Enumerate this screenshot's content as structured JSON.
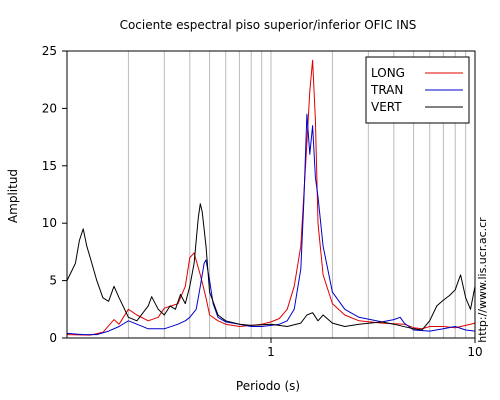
{
  "chart_data": {
    "type": "line",
    "title": "Cociente espectral piso superior/inferior  OFIC INS",
    "xlabel": "Periodo (s)",
    "ylabel": "Amplitud",
    "x_scale": "log",
    "xlim": [
      0.1,
      10
    ],
    "ylim": [
      0,
      25
    ],
    "xticks": [
      {
        "value": 1,
        "label": "1"
      },
      {
        "value": 10,
        "label": "10"
      }
    ],
    "yticks": [
      {
        "value": 0,
        "label": "0"
      },
      {
        "value": 5,
        "label": "5"
      },
      {
        "value": 10,
        "label": "10"
      },
      {
        "value": 15,
        "label": "15"
      },
      {
        "value": 20,
        "label": "20"
      },
      {
        "value": 25,
        "label": "25"
      }
    ],
    "grid": "vertical, log-spaced",
    "legend_position": "top-right",
    "watermark": "http://www.lis.ucr.ac.cr",
    "series": [
      {
        "name": "LONG",
        "color": "#e00000",
        "points": [
          [
            0.1,
            0.3
          ],
          [
            0.13,
            0.25
          ],
          [
            0.15,
            0.5
          ],
          [
            0.17,
            1.6
          ],
          [
            0.18,
            1.2
          ],
          [
            0.2,
            2.5
          ],
          [
            0.22,
            2.0
          ],
          [
            0.25,
            1.5
          ],
          [
            0.28,
            1.8
          ],
          [
            0.3,
            2.6
          ],
          [
            0.35,
            3.0
          ],
          [
            0.38,
            4.5
          ],
          [
            0.4,
            7.0
          ],
          [
            0.42,
            7.4
          ],
          [
            0.45,
            5.5
          ],
          [
            0.48,
            3.5
          ],
          [
            0.5,
            2.0
          ],
          [
            0.55,
            1.5
          ],
          [
            0.6,
            1.2
          ],
          [
            0.7,
            1.0
          ],
          [
            0.8,
            1.1
          ],
          [
            0.9,
            1.2
          ],
          [
            1.0,
            1.4
          ],
          [
            1.1,
            1.7
          ],
          [
            1.2,
            2.5
          ],
          [
            1.3,
            4.5
          ],
          [
            1.4,
            8.0
          ],
          [
            1.5,
            17.0
          ],
          [
            1.55,
            21.5
          ],
          [
            1.6,
            24.2
          ],
          [
            1.65,
            19.0
          ],
          [
            1.7,
            10.0
          ],
          [
            1.8,
            5.5
          ],
          [
            2.0,
            3.0
          ],
          [
            2.3,
            2.0
          ],
          [
            2.7,
            1.5
          ],
          [
            3.5,
            1.3
          ],
          [
            4.5,
            1.2
          ],
          [
            5.0,
            0.9
          ],
          [
            5.5,
            0.8
          ],
          [
            6.0,
            1.0
          ],
          [
            7.0,
            1.0
          ],
          [
            8.0,
            0.9
          ],
          [
            9.0,
            1.1
          ],
          [
            10.0,
            1.3
          ]
        ]
      },
      {
        "name": "TRAN",
        "color": "#0000cc",
        "points": [
          [
            0.1,
            0.4
          ],
          [
            0.12,
            0.3
          ],
          [
            0.14,
            0.3
          ],
          [
            0.16,
            0.6
          ],
          [
            0.18,
            1.0
          ],
          [
            0.2,
            1.5
          ],
          [
            0.22,
            1.2
          ],
          [
            0.25,
            0.8
          ],
          [
            0.28,
            0.8
          ],
          [
            0.3,
            0.8
          ],
          [
            0.35,
            1.2
          ],
          [
            0.38,
            1.5
          ],
          [
            0.4,
            1.8
          ],
          [
            0.43,
            2.5
          ],
          [
            0.45,
            4.5
          ],
          [
            0.47,
            6.5
          ],
          [
            0.48,
            6.8
          ],
          [
            0.5,
            5.0
          ],
          [
            0.52,
            3.0
          ],
          [
            0.55,
            1.8
          ],
          [
            0.6,
            1.4
          ],
          [
            0.7,
            1.2
          ],
          [
            0.8,
            1.0
          ],
          [
            0.9,
            1.0
          ],
          [
            1.0,
            1.1
          ],
          [
            1.1,
            1.2
          ],
          [
            1.2,
            1.5
          ],
          [
            1.3,
            2.5
          ],
          [
            1.4,
            6.0
          ],
          [
            1.45,
            12.0
          ],
          [
            1.5,
            19.5
          ],
          [
            1.55,
            16.0
          ],
          [
            1.6,
            18.5
          ],
          [
            1.65,
            14.0
          ],
          [
            1.7,
            12.3
          ],
          [
            1.8,
            8.0
          ],
          [
            2.0,
            4.0
          ],
          [
            2.3,
            2.5
          ],
          [
            2.7,
            1.8
          ],
          [
            3.5,
            1.4
          ],
          [
            4.0,
            1.6
          ],
          [
            4.3,
            1.8
          ],
          [
            4.5,
            1.3
          ],
          [
            5.0,
            0.7
          ],
          [
            6.0,
            0.6
          ],
          [
            7.0,
            0.8
          ],
          [
            8.0,
            1.0
          ],
          [
            9.0,
            0.7
          ],
          [
            10.0,
            0.6
          ]
        ]
      },
      {
        "name": "VERT",
        "color": "#000000",
        "points": [
          [
            0.1,
            5.0
          ],
          [
            0.11,
            6.5
          ],
          [
            0.115,
            8.5
          ],
          [
            0.12,
            9.5
          ],
          [
            0.125,
            8.0
          ],
          [
            0.13,
            7.0
          ],
          [
            0.14,
            5.0
          ],
          [
            0.15,
            3.5
          ],
          [
            0.16,
            3.2
          ],
          [
            0.17,
            4.5
          ],
          [
            0.18,
            3.5
          ],
          [
            0.2,
            1.8
          ],
          [
            0.22,
            1.5
          ],
          [
            0.25,
            2.8
          ],
          [
            0.26,
            3.6
          ],
          [
            0.28,
            2.5
          ],
          [
            0.3,
            2.0
          ],
          [
            0.32,
            2.8
          ],
          [
            0.34,
            2.5
          ],
          [
            0.36,
            3.8
          ],
          [
            0.38,
            3.0
          ],
          [
            0.4,
            4.5
          ],
          [
            0.42,
            6.5
          ],
          [
            0.44,
            10.5
          ],
          [
            0.45,
            11.7
          ],
          [
            0.46,
            11.0
          ],
          [
            0.48,
            8.0
          ],
          [
            0.5,
            4.0
          ],
          [
            0.55,
            2.0
          ],
          [
            0.6,
            1.5
          ],
          [
            0.7,
            1.2
          ],
          [
            0.8,
            1.1
          ],
          [
            1.0,
            1.2
          ],
          [
            1.2,
            1.0
          ],
          [
            1.4,
            1.3
          ],
          [
            1.5,
            2.0
          ],
          [
            1.6,
            2.2
          ],
          [
            1.7,
            1.5
          ],
          [
            1.8,
            2.0
          ],
          [
            2.0,
            1.3
          ],
          [
            2.3,
            1.0
          ],
          [
            2.7,
            1.2
          ],
          [
            3.5,
            1.4
          ],
          [
            4.0,
            1.2
          ],
          [
            5.0,
            0.8
          ],
          [
            5.5,
            0.7
          ],
          [
            6.0,
            1.5
          ],
          [
            6.5,
            2.8
          ],
          [
            7.0,
            3.3
          ],
          [
            7.5,
            3.7
          ],
          [
            8.0,
            4.2
          ],
          [
            8.3,
            5.0
          ],
          [
            8.5,
            5.5
          ],
          [
            9.0,
            3.5
          ],
          [
            9.5,
            2.5
          ],
          [
            10.0,
            4.5
          ]
        ]
      }
    ]
  }
}
